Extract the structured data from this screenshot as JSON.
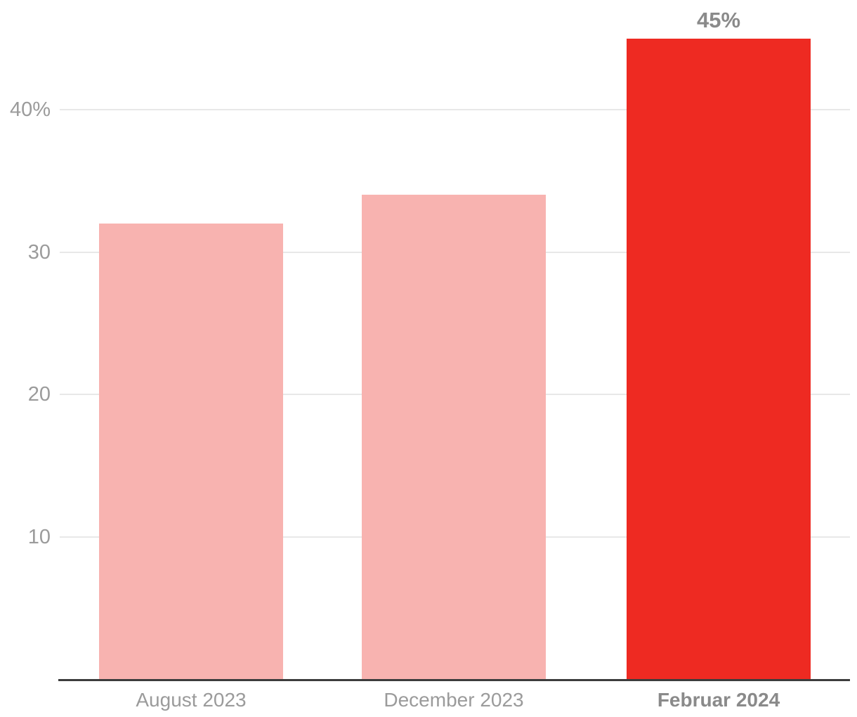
{
  "chart_data": {
    "type": "bar",
    "categories": [
      "August 2023",
      "December 2023",
      "Februar 2024"
    ],
    "values": [
      32,
      34,
      45
    ],
    "value_labels": [
      "",
      "",
      "45%"
    ],
    "highlight_index": 2,
    "yticks": [
      {
        "value": 10,
        "label": "10"
      },
      {
        "value": 20,
        "label": "20"
      },
      {
        "value": 30,
        "label": "30"
      },
      {
        "value": 40,
        "label": "40%"
      }
    ],
    "ylim": [
      0,
      47.6
    ],
    "grid": "horizontal",
    "legend": "none",
    "title": "",
    "xlabel": "",
    "ylabel": "",
    "colors": {
      "bar_default": "#F8B3B0",
      "bar_highlight": "#EE2A22",
      "grid_line": "#E8E8E8",
      "axis_line": "#3C3C3C",
      "tick_label": "#9B9B9B",
      "emphasis_label": "#8A8A8A"
    }
  }
}
